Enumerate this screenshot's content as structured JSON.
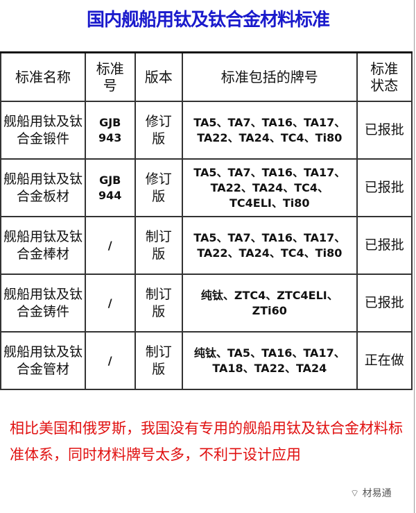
{
  "title": "国内舰船用钛及钛合金材料标准",
  "table": {
    "headers": [
      "标准名称",
      "标准号",
      "版本",
      "标准包括的牌号",
      "标准状态"
    ],
    "rows": [
      {
        "name": "舰船用钛及钛合金锻件",
        "code": "GJB 943",
        "version": "修订版",
        "grades": "TA5、TA7、TA16、TA17、TA22、TA24、TC4、Ti80",
        "status": "已报批"
      },
      {
        "name": "舰船用钛及钛合金板材",
        "code": "GJB 944",
        "version": "修订版",
        "grades": "TA5、TA7、TA16、TA17、TA22、TA24、TC4、TC4ELI、Ti80",
        "status": "已报批"
      },
      {
        "name": "舰船用钛及钛合金棒材",
        "code": "/",
        "version": "制订版",
        "grades": "TA5、TA7、TA16、TA17、TA22、TA24、TC4、Ti80",
        "status": "已报批"
      },
      {
        "name": "舰船用钛及钛合金铸件",
        "code": "/",
        "version": "制订版",
        "grades": "纯钛、ZTC4、ZTC4ELI、ZTi60",
        "status": "已报批"
      },
      {
        "name": "舰船用钛及钛合金管材",
        "code": "/",
        "version": "制订版",
        "grades": "纯钛、TA5、TA16、TA17、TA18、TA22、TA24",
        "status": "正在做"
      }
    ]
  },
  "note": "相比美国和俄罗斯，我国没有专用的舰船用钛及钛合金材料标准体系，同时材料牌号太多，不利于设计应用",
  "watermark": "材易通",
  "colors": {
    "title": "#1a1acc",
    "note": "#e01010"
  }
}
